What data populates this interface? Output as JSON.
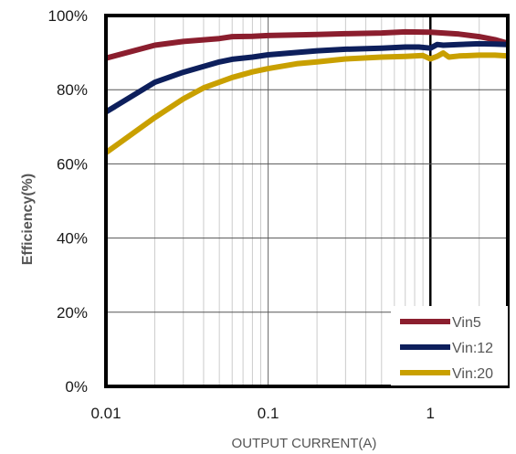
{
  "chart_data": {
    "type": "line",
    "xlabel": "OUTPUT CURRENT(A)",
    "ylabel": "Efficiency(%)",
    "x_scale": "log",
    "xlim": [
      0.01,
      3
    ],
    "ylim": [
      0,
      100
    ],
    "x_ticks": [
      {
        "value": 0.01,
        "label": "0.01"
      },
      {
        "value": 0.1,
        "label": "0.1"
      },
      {
        "value": 1,
        "label": "1"
      }
    ],
    "y_ticks": [
      {
        "value": 0,
        "label": "0%"
      },
      {
        "value": 20,
        "label": "20%"
      },
      {
        "value": 40,
        "label": "40%"
      },
      {
        "value": 60,
        "label": "60%"
      },
      {
        "value": 80,
        "label": "80%"
      },
      {
        "value": 100,
        "label": "100%"
      }
    ],
    "grid": true,
    "legend_position": "bottom-right",
    "series": [
      {
        "name": "Vin5",
        "color": "#8b1e2e",
        "x": [
          0.01,
          0.02,
          0.03,
          0.05,
          0.06,
          0.08,
          0.1,
          0.2,
          0.3,
          0.5,
          0.7,
          1,
          1.5,
          2,
          2.5,
          3
        ],
        "y": [
          88.5,
          92,
          93,
          93.8,
          94.3,
          94.4,
          94.6,
          94.9,
          95.1,
          95.3,
          95.6,
          95.5,
          95,
          94.3,
          93.5,
          92.5
        ]
      },
      {
        "name": "Vin:12",
        "color": "#0d1f5c",
        "x": [
          0.01,
          0.02,
          0.03,
          0.05,
          0.06,
          0.08,
          0.1,
          0.2,
          0.3,
          0.5,
          0.7,
          0.85,
          1,
          1.1,
          1.2,
          1.5,
          2,
          2.5,
          3
        ],
        "y": [
          74,
          82,
          84.7,
          87.5,
          88.2,
          88.8,
          89.4,
          90.5,
          90.9,
          91.2,
          91.5,
          91.5,
          91.2,
          92.2,
          92,
          92.2,
          92.4,
          92.3,
          92.2
        ]
      },
      {
        "name": "Vin:20",
        "color": "#c9a000",
        "x": [
          0.01,
          0.02,
          0.03,
          0.04,
          0.06,
          0.08,
          0.1,
          0.15,
          0.2,
          0.3,
          0.5,
          0.7,
          0.9,
          1,
          1.1,
          1.2,
          1.3,
          1.5,
          2,
          2.5,
          3
        ],
        "y": [
          63,
          72.5,
          77.5,
          80.5,
          83.3,
          84.8,
          85.7,
          87,
          87.5,
          88.3,
          88.8,
          89,
          89.2,
          88.3,
          89,
          89.9,
          88.8,
          89.1,
          89.3,
          89.3,
          89.1
        ]
      }
    ]
  }
}
